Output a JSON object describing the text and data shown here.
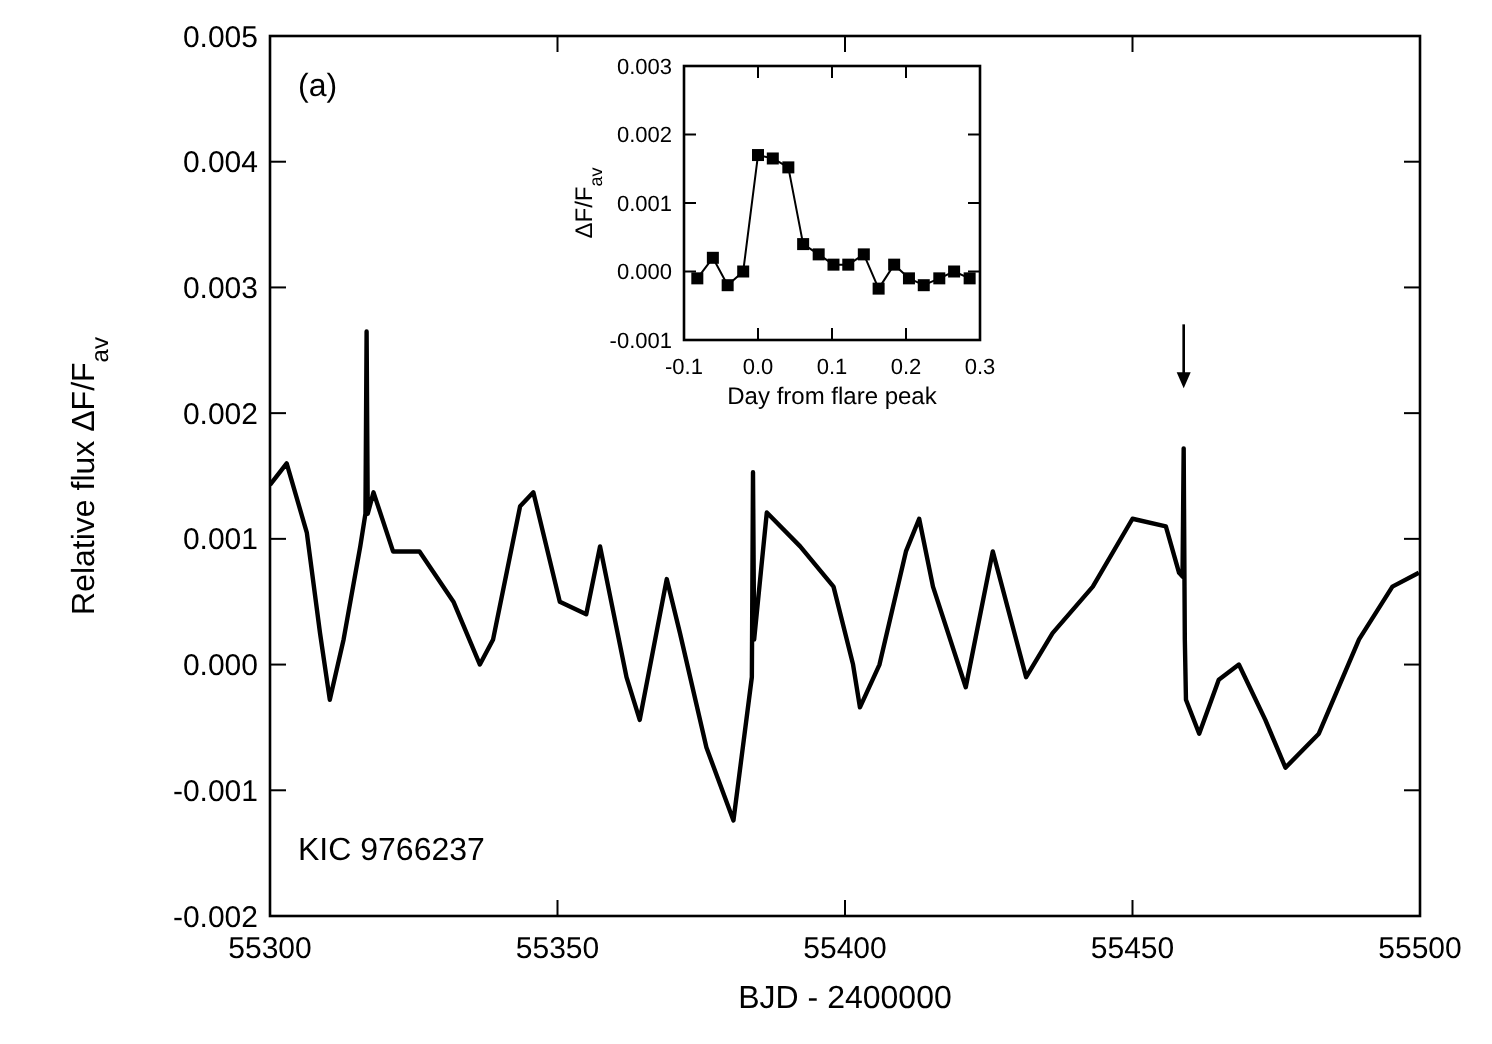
{
  "chart_data": [
    {
      "type": "line",
      "xlabel": "BJD - 2400000",
      "ylabel": "Relative flux ΔF/F$_{av}$",
      "annotations": [
        "(a)",
        "KIC 9766237"
      ],
      "xlim": [
        55300,
        55500
      ],
      "xticks": [
        55300,
        55350,
        55400,
        55450,
        55500
      ],
      "ylim": [
        -0.002,
        0.005
      ],
      "yticks": [
        -0.002,
        -0.001,
        {
          "value": 0,
          "label": "0.000"
        },
        0.001,
        0.002,
        0.003,
        0.004,
        0.005
      ],
      "grid": false,
      "marker": "none",
      "line_style": "solid",
      "series": [
        {
          "color": "#000000",
          "x": [
            55300,
            55302.9,
            55306.4,
            55308.7,
            55310.4,
            55312.8,
            55315.7,
            55316.6,
            55316.8,
            55317,
            55318,
            55321.4,
            55326,
            55331.9,
            55336.5,
            55338.8,
            55343.5,
            55345.8,
            55350.4,
            55355,
            55357.4,
            55362,
            55364.3,
            55369,
            55371.3,
            55375.9,
            55380.6,
            55383.8,
            55384,
            55384.2,
            55386.4,
            55392.2,
            55398,
            55401.4,
            55402.6,
            55406,
            55410.6,
            55412.9,
            55415.3,
            55421,
            55425.7,
            55431.5,
            55436.1,
            55443.1,
            55450,
            55455.8,
            55458.1,
            55458.7,
            55458.9,
            55459.1,
            55459.3,
            55461.6,
            55465,
            55468.5,
            55473.1,
            55476.6,
            55482.4,
            55489.4,
            55495.2,
            55499.8
          ],
          "values": [
            0.00143,
            0.0016,
            0.00105,
            0.00025,
            -0.00028,
            0.0002,
            0.00094,
            0.0012,
            0.00265,
            0.0012,
            0.00137,
            0.0009,
            0.0009,
            0.0005,
            0,
            0.0002,
            0.00126,
            0.00137,
            0.0005,
            0.0004,
            0.00094,
            -0.0001,
            -0.00044,
            0.00068,
            0.00025,
            -0.00066,
            -0.00124,
            -0.0001,
            0.00153,
            0.0002,
            0.00121,
            0.00094,
            0.00062,
            0,
            -0.00034,
            0,
            0.0009,
            0.00116,
            0.00062,
            -0.00018,
            0.0009,
            -0.0001,
            0.00025,
            0.00062,
            0.00116,
            0.0011,
            0.00073,
            0.0007,
            0.00172,
            0.0002,
            -0.00028,
            -0.00055,
            -0.00012,
            0,
            -0.00044,
            -0.00082,
            -0.00055,
            0.0002,
            0.00062,
            0.00073
          ]
        }
      ]
    },
    {
      "type": "line",
      "xlabel": "Day from flare peak",
      "ylabel": "ΔF/F$_{av}$",
      "xlim": [
        -0.1,
        0.3
      ],
      "xticks": [
        -0.1,
        {
          "value": 0,
          "label": "0.0"
        },
        0.1,
        0.2,
        0.3
      ],
      "ylim": [
        -0.001,
        0.003
      ],
      "yticks": [
        -0.001,
        {
          "value": 0,
          "label": "0.000"
        },
        0.001,
        0.002,
        0.003
      ],
      "grid": false,
      "marker": "square",
      "line_style": "solid",
      "series": [
        {
          "color": "#000000",
          "x": [
            -0.082,
            -0.061,
            -0.041,
            -0.02,
            0,
            0.02,
            0.041,
            0.061,
            0.082,
            0.102,
            0.122,
            0.143,
            0.163,
            0.184,
            0.204,
            0.224,
            0.245,
            0.265,
            0.286
          ],
          "values": [
            -0.0001,
            0.0002,
            -0.0002,
            0,
            0.0017,
            0.00165,
            0.00152,
            0.0004,
            0.00025,
            0.0001,
            0.0001,
            0.00025,
            -0.00025,
            0.0001,
            -0.0001,
            -0.0002,
            -0.0001,
            0,
            -0.0001
          ]
        }
      ]
    }
  ]
}
